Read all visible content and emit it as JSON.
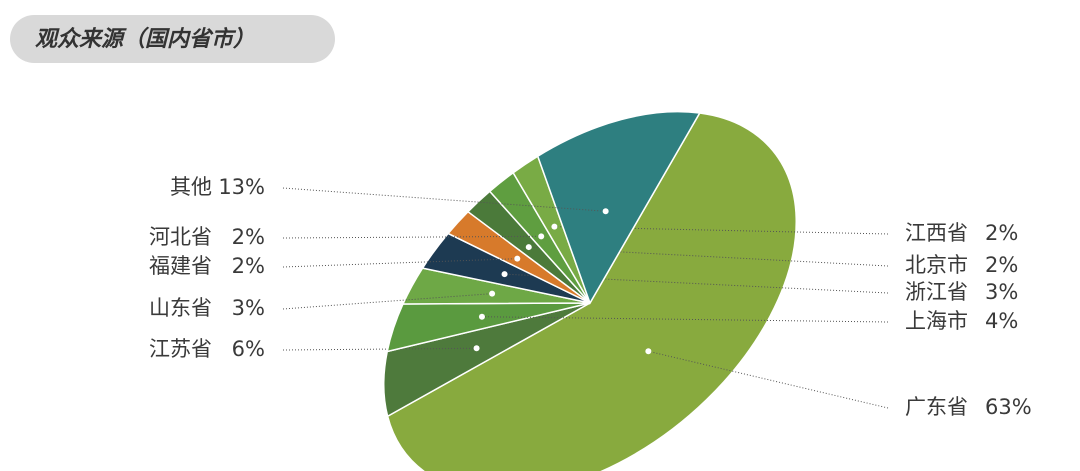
{
  "chart_data": {
    "type": "pie",
    "title": "观众来源（国内省市）",
    "categories": [
      "广东省",
      "江苏省",
      "上海市",
      "山东省",
      "浙江省",
      "福建省",
      "北京市",
      "河北省",
      "江西省",
      "其他"
    ],
    "values": [
      63,
      6,
      4,
      3,
      3,
      2,
      2,
      2,
      2,
      13
    ],
    "value_labels": [
      "63%",
      "6%",
      "4%",
      "3%",
      "3%",
      "2%",
      "2%",
      "2%",
      "2%",
      "13%"
    ],
    "colors": [
      "#88aa3e",
      "#4e7a3c",
      "#5a9a3f",
      "#6ea846",
      "#1d3a52",
      "#d77a2b",
      "#4b7a3a",
      "#5f9e40",
      "#79ab45",
      "#2e7f80"
    ]
  }
}
